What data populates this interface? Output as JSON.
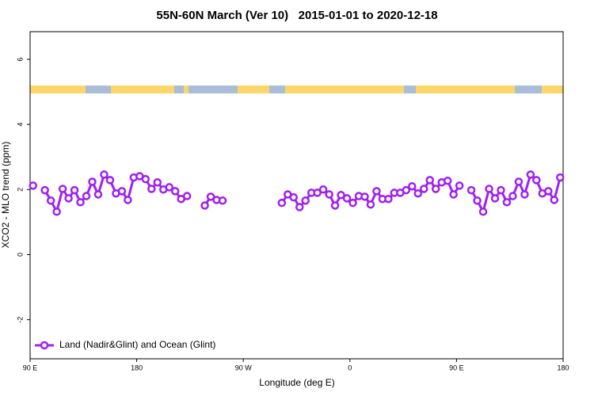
{
  "chart_data": {
    "type": "line",
    "title": "55N-60N March (Ver 10)   2015-01-01 to 2020-12-18",
    "x_label": "Longitude (deg E)",
    "y_label": "XCO2 - MLO trend (ppm)",
    "xlim": [
      90,
      540
    ],
    "ylim": [
      -3.2,
      6.85
    ],
    "xticks": [
      {
        "value": 90,
        "label": "90 E"
      },
      {
        "value": 180,
        "label": "180"
      },
      {
        "value": 270,
        "label": "90 W"
      },
      {
        "value": 360,
        "label": "0"
      },
      {
        "value": 450,
        "label": "90 E"
      },
      {
        "value": 540,
        "label": "180"
      }
    ],
    "yticks": [
      -2,
      0,
      2,
      4,
      6
    ],
    "legend_position": "bottom-left",
    "x": [
      92.5,
      97.5,
      102.5,
      107.5,
      112.5,
      117.5,
      122.5,
      127.5,
      132.5,
      137.5,
      142.5,
      147.5,
      152.5,
      157.5,
      162.5,
      167.5,
      172.5,
      177.5,
      182.5,
      187.5,
      192.5,
      197.5,
      202.5,
      207.5,
      212.5,
      217.5,
      222.5,
      230,
      237.5,
      242.5,
      247.5,
      252.5,
      277.5,
      302.5,
      307.5,
      312.5,
      317.5,
      322.5,
      327.5,
      332.5,
      337.5,
      342.5,
      347.5,
      352.5,
      357.5,
      362.5,
      367.5,
      372.5,
      377.5,
      382.5,
      387.5,
      392.5,
      397.5,
      402.5,
      407.5,
      412.5,
      417.5,
      422.5,
      427.5,
      432.5,
      437.5,
      442.5,
      447.5,
      452.5,
      457.5,
      462.5,
      467.5,
      472.5,
      477.5,
      482.5,
      487.5,
      492.5,
      497.5,
      502.5,
      507.5,
      512.5,
      517.5,
      522.5,
      527.5,
      532.5,
      537.5
    ],
    "series": [
      {
        "name": "Land (Nadir&Glint) and Ocean (Glint)",
        "color": "#a020f0",
        "values": [
          2.12,
          null,
          1.98,
          1.66,
          1.32,
          2.02,
          1.73,
          1.98,
          1.61,
          1.8,
          2.24,
          1.85,
          2.46,
          2.29,
          1.88,
          1.95,
          1.68,
          2.37,
          2.41,
          2.32,
          2.02,
          2.22,
          2.0,
          2.07,
          1.95,
          1.71,
          1.8,
          null,
          1.51,
          1.78,
          1.68,
          1.66,
          null,
          1.59,
          1.85,
          1.76,
          1.46,
          1.66,
          1.9,
          1.9,
          2.0,
          1.85,
          1.51,
          1.83,
          1.73,
          1.59,
          1.8,
          1.78,
          1.54,
          1.95,
          1.71,
          1.71,
          1.9,
          1.9,
          1.98,
          2.1,
          1.88,
          2.02,
          2.29,
          2.02,
          2.22,
          2.27,
          1.85,
          2.12,
          null,
          1.98,
          1.66,
          1.32,
          2.02,
          1.73,
          1.98,
          1.61,
          1.8,
          2.24,
          1.85,
          2.46,
          2.29,
          1.88,
          1.95,
          1.68,
          2.37
        ]
      }
    ]
  }
}
